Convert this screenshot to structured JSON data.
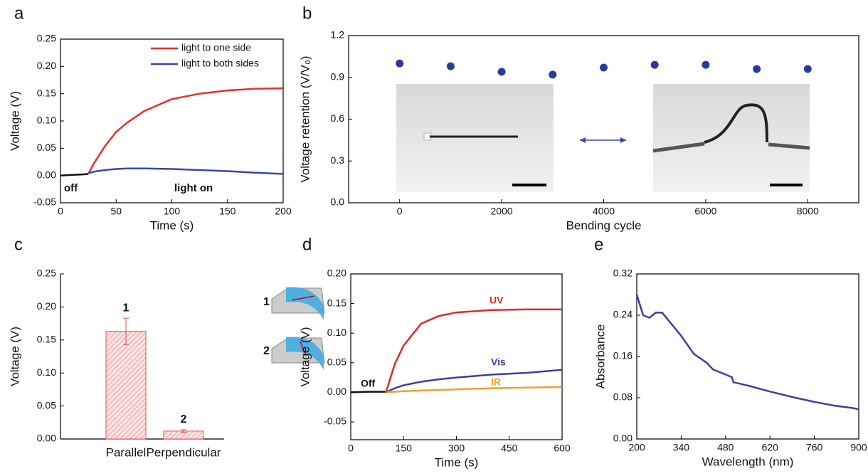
{
  "chart_data": [
    {
      "type": "line",
      "label": "a",
      "xlabel": "Time (s)",
      "ylabel": "Voltage (V)",
      "x": [
        0,
        10,
        20,
        25,
        30,
        40,
        50,
        60,
        75,
        100,
        125,
        150,
        175,
        200
      ],
      "series": [
        {
          "color": "#111111",
          "values": [
            0,
            0.001,
            0.002,
            0.003,
            null,
            null,
            null,
            null,
            null,
            null,
            null,
            null,
            null,
            null
          ]
        },
        {
          "name": "light to one side",
          "color": "#e8302e",
          "values": [
            null,
            null,
            null,
            0.003,
            0.022,
            0.054,
            0.08,
            0.097,
            0.118,
            0.14,
            0.15,
            0.156,
            0.159,
            0.16
          ]
        },
        {
          "name": "light to both sides",
          "color": "#3b45a8",
          "values": [
            null,
            null,
            null,
            0.004,
            0.007,
            0.01,
            0.012,
            0.013,
            0.013,
            0.012,
            0.01,
            0.008,
            0.005,
            0.003
          ]
        }
      ],
      "annotations": [
        "off",
        "light on"
      ],
      "xlim": [
        0,
        200
      ],
      "xticks": [
        0,
        50,
        100,
        150,
        200
      ],
      "ylim": [
        -0.05,
        0.25
      ],
      "yticks": [
        -0.05,
        {
          "value": 0,
          "label": "0.00"
        },
        0.05,
        {
          "value": 0.1,
          "label": "0.10"
        },
        0.15,
        {
          "value": 0.2,
          "label": "0.20"
        },
        0.25
      ],
      "legend": "upper right"
    },
    {
      "type": "scatter",
      "label": "b",
      "xlabel": "Bending cycle",
      "ylabel": "Voltage retention (V/V₀)",
      "series": [
        {
          "color": "#2b3a9a",
          "x": [
            0,
            1000,
            2000,
            3000,
            4000,
            5000,
            6000,
            7000,
            8000
          ],
          "values": [
            1.0,
            0.98,
            0.94,
            0.92,
            0.97,
            0.99,
            0.99,
            0.96,
            0.96
          ]
        }
      ],
      "xlim": [
        -1000,
        9000
      ],
      "xticks": [
        0,
        2000,
        4000,
        6000,
        8000
      ],
      "ylim": [
        0,
        1.2
      ],
      "yticks": [
        {
          "value": 0,
          "label": "0.0"
        },
        0.3,
        0.6,
        0.9,
        1.2
      ]
    },
    {
      "type": "bar",
      "label": "c",
      "ylabel": "Voltage (V)",
      "categories": [
        "Parallel",
        "Perpendicular"
      ],
      "values": [
        0.163,
        0.012
      ],
      "errors": [
        0.02,
        0.002
      ],
      "bar_labels": [
        "1",
        "2"
      ],
      "inset_labels": [
        "1",
        "2"
      ],
      "color": "#e05050",
      "ylim": [
        0,
        0.25
      ],
      "yticks": [
        {
          "value": 0,
          "label": "0.00"
        },
        0.05,
        {
          "value": 0.1,
          "label": "0.10"
        },
        0.15,
        {
          "value": 0.2,
          "label": "0.20"
        },
        0.25
      ]
    },
    {
      "type": "line",
      "label": "d",
      "xlabel": "Time (s)",
      "ylabel": "Voltage (V)",
      "x": [
        0,
        50,
        100,
        125,
        150,
        200,
        250,
        300,
        400,
        500,
        600
      ],
      "series": [
        {
          "name": "Off",
          "color": "#111111",
          "values": [
            0,
            0.001,
            0.001,
            null,
            null,
            null,
            null,
            null,
            null,
            null,
            null
          ]
        },
        {
          "name": "UV",
          "color": "#e0282c",
          "values": [
            null,
            null,
            0,
            0.048,
            0.079,
            0.116,
            0.129,
            0.135,
            0.139,
            0.14,
            0.14
          ]
        },
        {
          "name": "Vis",
          "color": "#3a3fa0",
          "values": [
            null,
            null,
            0,
            0.007,
            0.012,
            0.018,
            0.022,
            0.025,
            0.03,
            0.033,
            0.038
          ]
        },
        {
          "name": "IR",
          "color": "#f0a030",
          "values": [
            null,
            null,
            0,
            0.001,
            0.002,
            0.003,
            0.004,
            0.005,
            0.007,
            0.008,
            0.009
          ]
        }
      ],
      "xlim": [
        0,
        600
      ],
      "xticks": [
        0,
        150,
        300,
        450,
        600
      ],
      "ylim": [
        -0.08,
        0.2
      ],
      "yticks": [
        -0.05,
        {
          "value": 0,
          "label": "0.00"
        },
        0.05,
        {
          "value": 0.1,
          "label": "0.10"
        },
        0.15,
        {
          "value": 0.2,
          "label": "0.20"
        }
      ]
    },
    {
      "type": "line",
      "label": "e",
      "xlabel": "Wavelength (nm)",
      "ylabel": "Absorbance",
      "x": [
        200,
        220,
        240,
        260,
        280,
        300,
        340,
        380,
        420,
        440,
        480,
        500,
        505,
        520,
        560,
        620,
        700,
        760,
        820,
        880,
        900
      ],
      "series": [
        {
          "color": "#3a3fa8",
          "values": [
            0.28,
            0.24,
            0.235,
            0.245,
            0.245,
            0.23,
            0.2,
            0.165,
            0.148,
            0.135,
            0.125,
            0.12,
            0.11,
            0.108,
            0.102,
            0.092,
            0.08,
            0.072,
            0.065,
            0.06,
            0.058
          ]
        }
      ],
      "xlim": [
        200,
        900
      ],
      "xticks": [
        200,
        340,
        480,
        620,
        760,
        900
      ],
      "ylim": [
        0,
        0.32
      ],
      "yticks": [
        {
          "value": 0,
          "label": "0.00"
        },
        0.08,
        0.16,
        0.24,
        0.32
      ]
    }
  ]
}
